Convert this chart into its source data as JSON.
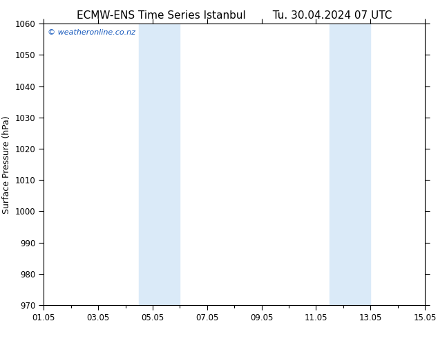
{
  "title_left": "ECMW-ENS Time Series Istanbul",
  "title_right": "Tu. 30.04.2024 07 UTC",
  "ylabel": "Surface Pressure (hPa)",
  "ylim": [
    970,
    1060
  ],
  "yticks": [
    970,
    980,
    990,
    1000,
    1010,
    1020,
    1030,
    1040,
    1050,
    1060
  ],
  "xlim_start": 0,
  "xlim_end": 14,
  "xtick_positions": [
    0,
    2,
    4,
    6,
    8,
    10,
    12,
    14
  ],
  "xtick_labels": [
    "01.05",
    "03.05",
    "05.05",
    "07.05",
    "09.05",
    "11.05",
    "13.05",
    "15.05"
  ],
  "background_color": "#ffffff",
  "plot_bg_color": "#ffffff",
  "band1_x_start": 3.5,
  "band1_x_end": 5.0,
  "band2_x_start": 10.5,
  "band2_x_end": 12.0,
  "band_color": "#daeaf8",
  "watermark_text": "© weatheronline.co.nz",
  "watermark_color": "#1155bb",
  "title_fontsize": 11,
  "axis_label_fontsize": 9,
  "tick_fontsize": 8.5,
  "watermark_fontsize": 8
}
